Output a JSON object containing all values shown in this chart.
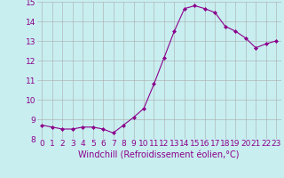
{
  "x": [
    0,
    1,
    2,
    3,
    4,
    5,
    6,
    7,
    8,
    9,
    10,
    11,
    12,
    13,
    14,
    15,
    16,
    17,
    18,
    19,
    20,
    21,
    22,
    23
  ],
  "y": [
    8.7,
    8.6,
    8.5,
    8.5,
    8.6,
    8.6,
    8.5,
    8.3,
    8.7,
    9.1,
    9.55,
    10.8,
    12.15,
    13.5,
    14.65,
    14.8,
    14.65,
    14.45,
    13.75,
    13.5,
    13.15,
    12.65,
    12.85,
    13.0
  ],
  "line_color": "#8B008B",
  "marker": "D",
  "marker_size": 2,
  "background_color": "#c8eef0",
  "grid_color": "#aaaaaa",
  "xlabel": "Windchill (Refroidissement éolien,°C)",
  "xlabel_color": "#8B008B",
  "xlabel_fontsize": 7,
  "tick_color": "#8B008B",
  "tick_fontsize": 6.5,
  "ylim": [
    8,
    15
  ],
  "xlim": [
    -0.5,
    23.5
  ],
  "yticks": [
    8,
    9,
    10,
    11,
    12,
    13,
    14,
    15
  ],
  "xticks": [
    0,
    1,
    2,
    3,
    4,
    5,
    6,
    7,
    8,
    9,
    10,
    11,
    12,
    13,
    14,
    15,
    16,
    17,
    18,
    19,
    20,
    21,
    22,
    23
  ]
}
